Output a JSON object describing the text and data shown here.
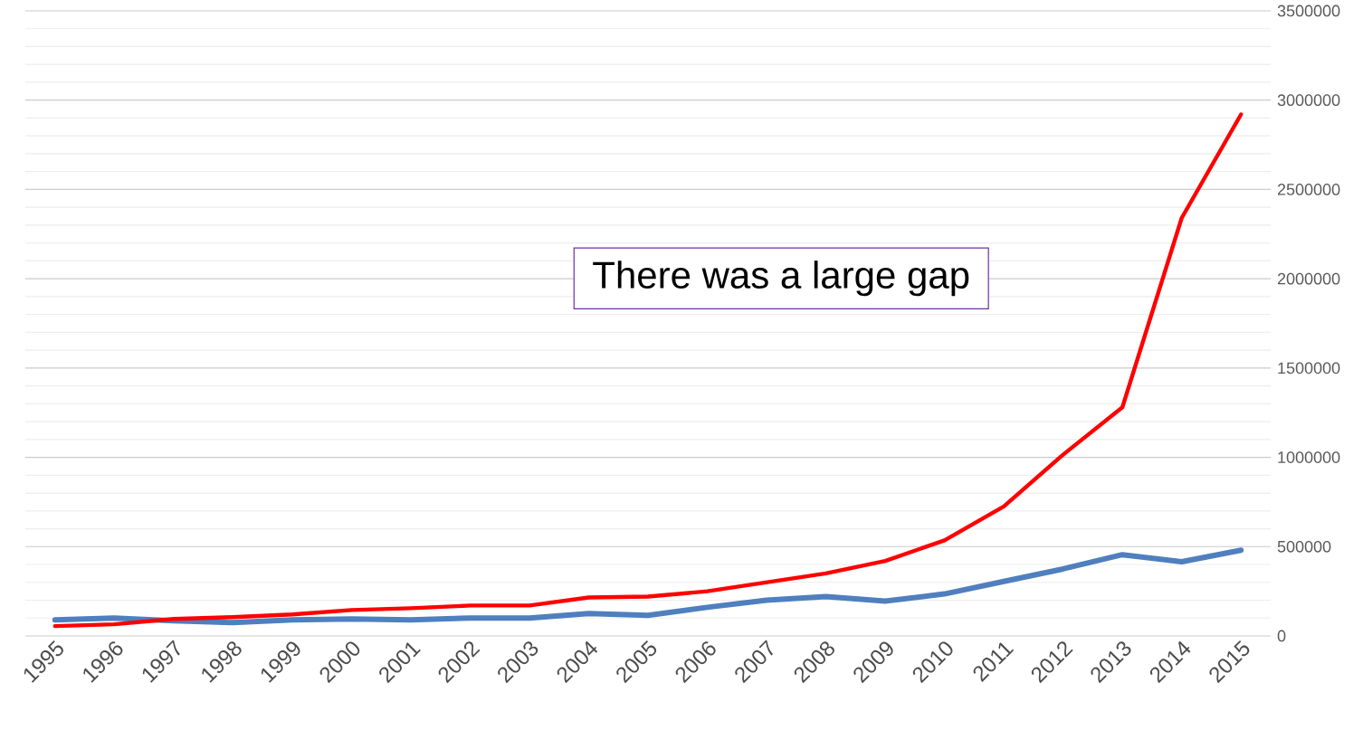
{
  "chart_data": {
    "type": "line",
    "categories": [
      "1995",
      "1996",
      "1997",
      "1998",
      "1999",
      "2000",
      "2001",
      "2002",
      "2003",
      "2004",
      "2005",
      "2006",
      "2007",
      "2008",
      "2009",
      "2010",
      "2011",
      "2012",
      "2013",
      "2014",
      "2015"
    ],
    "series": [
      {
        "color": "#4f7fbe",
        "line_style": "solid",
        "values": [
          90000,
          100000,
          85000,
          75000,
          90000,
          95000,
          90000,
          100000,
          100000,
          125000,
          115000,
          160000,
          200000,
          220000,
          195000,
          235000,
          305000,
          375000,
          455000,
          415000,
          480000
        ]
      },
      {
        "color": "#ff0000",
        "line_style": "solid",
        "values": [
          55000,
          65000,
          95000,
          105000,
          120000,
          145000,
          155000,
          170000,
          170000,
          215000,
          220000,
          250000,
          300000,
          350000,
          420000,
          535000,
          725000,
          1015000,
          1280000,
          2340000,
          2920000
        ]
      }
    ],
    "ylim": [
      0,
      3500000
    ],
    "yticks": [
      0,
      500000,
      1000000,
      1500000,
      2000000,
      2500000,
      3000000,
      3500000
    ],
    "grid": "y",
    "marker": "none",
    "annotations": [
      "There was a large gap"
    ]
  }
}
